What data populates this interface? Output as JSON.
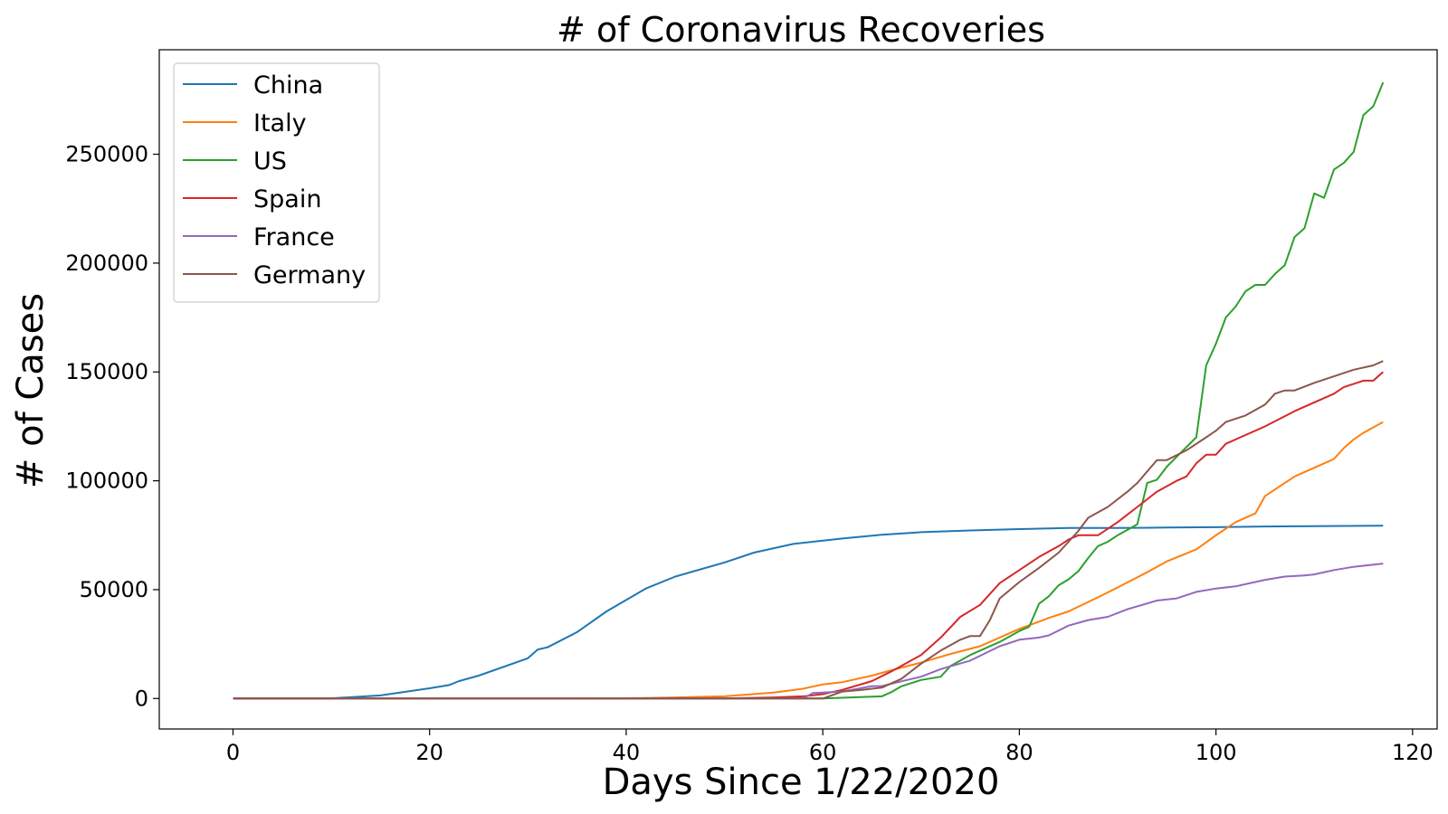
{
  "chart_data": {
    "type": "line",
    "title": "# of Coronavirus Recoveries",
    "xlabel": "Days Since 1/22/2020",
    "ylabel": "# of Cases",
    "xlim": [
      -7.5,
      122.5
    ],
    "ylim": [
      -14000,
      298000
    ],
    "xticks": [
      0,
      20,
      40,
      60,
      80,
      100,
      120
    ],
    "yticks": [
      0,
      50000,
      100000,
      150000,
      200000,
      250000
    ],
    "grid": false,
    "legend": "top-left",
    "series": [
      {
        "name": "China",
        "color": "#1f77b4",
        "points": [
          [
            0,
            0
          ],
          [
            10,
            100
          ],
          [
            15,
            1400
          ],
          [
            20,
            4700
          ],
          [
            22,
            6200
          ],
          [
            23,
            8000
          ],
          [
            25,
            10500
          ],
          [
            30,
            18500
          ],
          [
            31,
            22500
          ],
          [
            32,
            23500
          ],
          [
            35,
            30500
          ],
          [
            38,
            40000
          ],
          [
            42,
            50500
          ],
          [
            45,
            56000
          ],
          [
            50,
            62500
          ],
          [
            53,
            67000
          ],
          [
            57,
            71000
          ],
          [
            62,
            73500
          ],
          [
            66,
            75200
          ],
          [
            70,
            76400
          ],
          [
            75,
            77200
          ],
          [
            80,
            77800
          ],
          [
            85,
            78300
          ],
          [
            90,
            78300
          ],
          [
            95,
            78500
          ],
          [
            100,
            78700
          ],
          [
            105,
            79000
          ],
          [
            110,
            79200
          ],
          [
            117,
            79400
          ]
        ]
      },
      {
        "name": "Italy",
        "color": "#ff7f0e",
        "points": [
          [
            0,
            0
          ],
          [
            30,
            0
          ],
          [
            40,
            100
          ],
          [
            45,
            500
          ],
          [
            50,
            1000
          ],
          [
            55,
            2700
          ],
          [
            58,
            4500
          ],
          [
            60,
            6500
          ],
          [
            62,
            7500
          ],
          [
            65,
            10500
          ],
          [
            67,
            13000
          ],
          [
            70,
            16500
          ],
          [
            73,
            20500
          ],
          [
            76,
            24000
          ],
          [
            80,
            32000
          ],
          [
            83,
            37000
          ],
          [
            85,
            40000
          ],
          [
            88,
            46500
          ],
          [
            90,
            51000
          ],
          [
            93,
            58000
          ],
          [
            95,
            63000
          ],
          [
            98,
            68500
          ],
          [
            100,
            75000
          ],
          [
            102,
            81000
          ],
          [
            104,
            85000
          ],
          [
            105,
            93000
          ],
          [
            108,
            102000
          ],
          [
            110,
            106000
          ],
          [
            112,
            110000
          ],
          [
            113,
            115000
          ],
          [
            114,
            119000
          ],
          [
            115,
            122000
          ],
          [
            117,
            127000
          ]
        ]
      },
      {
        "name": "US",
        "color": "#2ca02c",
        "points": [
          [
            0,
            0
          ],
          [
            60,
            0
          ],
          [
            66,
            1000
          ],
          [
            67,
            3000
          ],
          [
            68,
            5600
          ],
          [
            70,
            8500
          ],
          [
            72,
            10000
          ],
          [
            73,
            15000
          ],
          [
            75,
            20000
          ],
          [
            78,
            26000
          ],
          [
            80,
            31000
          ],
          [
            81,
            33000
          ],
          [
            82,
            43500
          ],
          [
            83,
            47000
          ],
          [
            84,
            52000
          ],
          [
            85,
            54700
          ],
          [
            86,
            58500
          ],
          [
            87,
            64500
          ],
          [
            88,
            70000
          ],
          [
            89,
            72000
          ],
          [
            90,
            75000
          ],
          [
            91,
            77500
          ],
          [
            92,
            80000
          ],
          [
            93,
            99000
          ],
          [
            94,
            100500
          ],
          [
            95,
            106500
          ],
          [
            96,
            111000
          ],
          [
            98,
            120000
          ],
          [
            99,
            153000
          ],
          [
            100,
            163000
          ],
          [
            101,
            175000
          ],
          [
            102,
            180000
          ],
          [
            103,
            187000
          ],
          [
            104,
            190000
          ],
          [
            105,
            190000
          ],
          [
            106,
            195000
          ],
          [
            107,
            199000
          ],
          [
            108,
            212000
          ],
          [
            109,
            216000
          ],
          [
            110,
            232000
          ],
          [
            111,
            230000
          ],
          [
            112,
            243000
          ],
          [
            113,
            246000
          ],
          [
            114,
            251000
          ],
          [
            115,
            268000
          ],
          [
            116,
            272000
          ],
          [
            117,
            283000
          ]
        ]
      },
      {
        "name": "Spain",
        "color": "#d62728",
        "points": [
          [
            0,
            0
          ],
          [
            50,
            0
          ],
          [
            55,
            500
          ],
          [
            58,
            1000
          ],
          [
            60,
            2000
          ],
          [
            62,
            4000
          ],
          [
            65,
            8000
          ],
          [
            67,
            12500
          ],
          [
            70,
            20000
          ],
          [
            72,
            28000
          ],
          [
            74,
            37500
          ],
          [
            76,
            43000
          ],
          [
            78,
            53000
          ],
          [
            80,
            59000
          ],
          [
            82,
            65000
          ],
          [
            84,
            70000
          ],
          [
            85,
            73000
          ],
          [
            86,
            75000
          ],
          [
            88,
            75000
          ],
          [
            90,
            81000
          ],
          [
            92,
            88000
          ],
          [
            94,
            95000
          ],
          [
            96,
            100000
          ],
          [
            97,
            102000
          ],
          [
            98,
            108000
          ],
          [
            99,
            112000
          ],
          [
            100,
            112000
          ],
          [
            101,
            117000
          ],
          [
            103,
            121000
          ],
          [
            105,
            125000
          ],
          [
            108,
            132000
          ],
          [
            110,
            136000
          ],
          [
            112,
            140000
          ],
          [
            113,
            143000
          ],
          [
            115,
            146000
          ],
          [
            116,
            146000
          ],
          [
            117,
            150000
          ]
        ]
      },
      {
        "name": "France",
        "color": "#9467bd",
        "points": [
          [
            0,
            0
          ],
          [
            58,
            0
          ],
          [
            59,
            2500
          ],
          [
            62,
            3200
          ],
          [
            65,
            5700
          ],
          [
            66,
            5700
          ],
          [
            68,
            7900
          ],
          [
            70,
            10000
          ],
          [
            72,
            13500
          ],
          [
            75,
            17400
          ],
          [
            78,
            24000
          ],
          [
            80,
            27000
          ],
          [
            82,
            28000
          ],
          [
            83,
            29000
          ],
          [
            85,
            33500
          ],
          [
            87,
            36000
          ],
          [
            89,
            37500
          ],
          [
            91,
            41000
          ],
          [
            94,
            45000
          ],
          [
            96,
            46000
          ],
          [
            98,
            49000
          ],
          [
            100,
            50500
          ],
          [
            102,
            51500
          ],
          [
            103,
            52500
          ],
          [
            105,
            54500
          ],
          [
            107,
            56000
          ],
          [
            109,
            56500
          ],
          [
            110,
            57000
          ],
          [
            112,
            59000
          ],
          [
            114,
            60500
          ],
          [
            115,
            61000
          ],
          [
            117,
            62000
          ]
        ]
      },
      {
        "name": "Germany",
        "color": "#8c564b",
        "points": [
          [
            0,
            0
          ],
          [
            60,
            0
          ],
          [
            62,
            3200
          ],
          [
            64,
            4000
          ],
          [
            66,
            5000
          ],
          [
            68,
            9000
          ],
          [
            70,
            16000
          ],
          [
            72,
            22000
          ],
          [
            74,
            27000
          ],
          [
            75,
            28700
          ],
          [
            76,
            28700
          ],
          [
            77,
            36000
          ],
          [
            78,
            46000
          ],
          [
            80,
            53500
          ],
          [
            82,
            60000
          ],
          [
            84,
            67000
          ],
          [
            85,
            72000
          ],
          [
            86,
            77000
          ],
          [
            87,
            83000
          ],
          [
            89,
            88000
          ],
          [
            91,
            95000
          ],
          [
            92,
            99000
          ],
          [
            94,
            109500
          ],
          [
            95,
            109500
          ],
          [
            97,
            114000
          ],
          [
            99,
            120000
          ],
          [
            100,
            123000
          ],
          [
            101,
            127000
          ],
          [
            103,
            130000
          ],
          [
            105,
            135000
          ],
          [
            106,
            140000
          ],
          [
            107,
            141500
          ],
          [
            108,
            141500
          ],
          [
            110,
            145000
          ],
          [
            112,
            148000
          ],
          [
            114,
            151000
          ],
          [
            116,
            153000
          ],
          [
            117,
            155000
          ]
        ]
      }
    ]
  }
}
